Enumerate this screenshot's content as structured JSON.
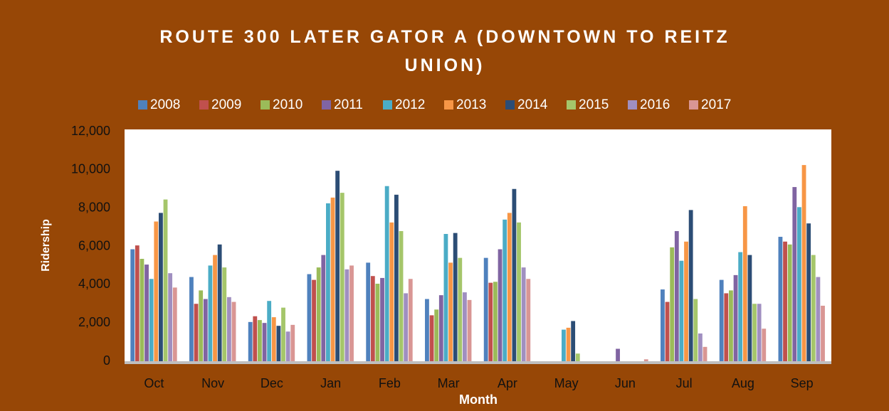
{
  "chart_data": {
    "type": "bar",
    "title": "ROUTE 300 LATER GATOR A (DOWNTOWN TO REITZ UNION)",
    "x_label": "Month",
    "y_label": "Ridership",
    "categories": [
      "Oct",
      "Nov",
      "Dec",
      "Jan",
      "Feb",
      "Mar",
      "Apr",
      "May",
      "Jun",
      "Jul",
      "Aug",
      "Sep"
    ],
    "series": [
      {
        "name": "2008",
        "color": "#4f81bd",
        "values": [
          5850,
          4400,
          2050,
          4550,
          5150,
          3250,
          5400,
          0,
          0,
          3750,
          4250,
          6500
        ]
      },
      {
        "name": "2009",
        "color": "#c0504d",
        "values": [
          6050,
          3000,
          2350,
          4250,
          4450,
          2400,
          4100,
          0,
          0,
          3100,
          3550,
          6250
        ]
      },
      {
        "name": "2010",
        "color": "#9bbb59",
        "values": [
          5350,
          3700,
          2150,
          4900,
          4050,
          2700,
          4150,
          0,
          0,
          5950,
          3700,
          6100
        ]
      },
      {
        "name": "2011",
        "color": "#8064a2",
        "values": [
          5050,
          3250,
          2000,
          5550,
          4350,
          3450,
          5850,
          0,
          650,
          6800,
          4500,
          9100
        ]
      },
      {
        "name": "2012",
        "color": "#4bacc6",
        "values": [
          4300,
          5000,
          3150,
          8250,
          9150,
          6650,
          7400,
          1650,
          0,
          5250,
          5700,
          8050
        ]
      },
      {
        "name": "2013",
        "color": "#f79646",
        "values": [
          7300,
          5550,
          2300,
          8550,
          7250,
          5150,
          7750,
          1750,
          0,
          6250,
          8100,
          10250
        ]
      },
      {
        "name": "2014",
        "color": "#2c4d75",
        "values": [
          7750,
          6100,
          1850,
          9950,
          8700,
          6700,
          9000,
          2100,
          0,
          7900,
          5550,
          7200
        ]
      },
      {
        "name": "2015",
        "color": "#a5c66a",
        "values": [
          8450,
          4900,
          2800,
          8800,
          6800,
          5400,
          7250,
          400,
          0,
          3250,
          3000,
          5550
        ]
      },
      {
        "name": "2016",
        "color": "#a08fc0",
        "values": [
          4600,
          3350,
          1550,
          4800,
          3550,
          3600,
          4900,
          0,
          0,
          1450,
          3000,
          4400
        ]
      },
      {
        "name": "2017",
        "color": "#d99694",
        "values": [
          3850,
          3100,
          1900,
          5000,
          4300,
          3200,
          4300,
          0,
          100,
          750,
          1700,
          2900
        ]
      }
    ],
    "ylim": [
      0,
      12000
    ],
    "yticks": [
      0,
      {
        "value": 2000,
        "label": "2,000"
      },
      {
        "value": 4000,
        "label": "4,000"
      },
      {
        "value": 6000,
        "label": "6,000"
      },
      {
        "value": 8000,
        "label": "8,000"
      },
      {
        "value": 10000,
        "label": "10,000"
      },
      {
        "value": 12000,
        "label": "12,000"
      }
    ],
    "legend": "top"
  }
}
